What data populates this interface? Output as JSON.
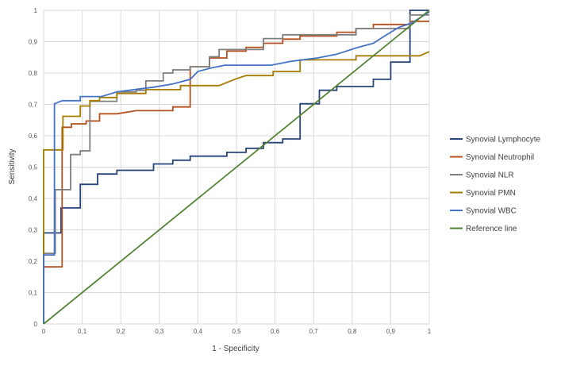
{
  "chart_data": {
    "type": "line",
    "title": "",
    "xlabel": "1 - Specificity",
    "ylabel": "Sensitivity",
    "xlim": [
      0,
      1
    ],
    "ylim": [
      0,
      1
    ],
    "x_ticks": [
      "0",
      "0,1",
      "0,2",
      "0,3",
      "0,4",
      "0,5",
      "0,6",
      "0,7",
      "0,8",
      "0,9",
      "1"
    ],
    "y_ticks": [
      "0",
      "0,1",
      "0,2",
      "0,3",
      "0,4",
      "0,5",
      "0,6",
      "0,7",
      "0,8",
      "0,9",
      "1"
    ],
    "grid": true,
    "legend_position": "right",
    "series": [
      {
        "name": "Synovial Lymphocyte",
        "color": "#264478",
        "step": true,
        "points": [
          [
            0,
            0
          ],
          [
            0,
            0.29
          ],
          [
            0.045,
            0.29
          ],
          [
            0.045,
            0.37
          ],
          [
            0.095,
            0.37
          ],
          [
            0.095,
            0.445
          ],
          [
            0.14,
            0.445
          ],
          [
            0.14,
            0.478
          ],
          [
            0.19,
            0.478
          ],
          [
            0.19,
            0.49
          ],
          [
            0.285,
            0.49
          ],
          [
            0.285,
            0.51
          ],
          [
            0.335,
            0.51
          ],
          [
            0.335,
            0.522
          ],
          [
            0.38,
            0.522
          ],
          [
            0.38,
            0.535
          ],
          [
            0.475,
            0.535
          ],
          [
            0.475,
            0.547
          ],
          [
            0.525,
            0.547
          ],
          [
            0.525,
            0.56
          ],
          [
            0.57,
            0.56
          ],
          [
            0.57,
            0.578
          ],
          [
            0.62,
            0.578
          ],
          [
            0.62,
            0.59
          ],
          [
            0.665,
            0.59
          ],
          [
            0.665,
            0.702
          ],
          [
            0.715,
            0.702
          ],
          [
            0.715,
            0.745
          ],
          [
            0.76,
            0.745
          ],
          [
            0.76,
            0.757
          ],
          [
            0.855,
            0.757
          ],
          [
            0.855,
            0.78
          ],
          [
            0.9,
            0.78
          ],
          [
            0.9,
            0.835
          ],
          [
            0.95,
            0.835
          ],
          [
            0.95,
            1
          ],
          [
            1,
            1
          ]
        ]
      },
      {
        "name": "Synovial Neutrophil",
        "color": "#B5501F",
        "step": true,
        "points": [
          [
            0,
            0
          ],
          [
            0,
            0.182
          ],
          [
            0.048,
            0.182
          ],
          [
            0.048,
            0.627
          ],
          [
            0.072,
            0.627
          ],
          [
            0.072,
            0.638
          ],
          [
            0.11,
            0.638
          ],
          [
            0.11,
            0.647
          ],
          [
            0.145,
            0.647
          ],
          [
            0.145,
            0.67
          ],
          [
            0.19,
            0.67
          ],
          [
            0.24,
            0.68
          ],
          [
            0.335,
            0.68
          ],
          [
            0.335,
            0.692
          ],
          [
            0.38,
            0.692
          ],
          [
            0.38,
            0.82
          ],
          [
            0.43,
            0.82
          ],
          [
            0.43,
            0.848
          ],
          [
            0.475,
            0.848
          ],
          [
            0.475,
            0.87
          ],
          [
            0.525,
            0.87
          ],
          [
            0.525,
            0.882
          ],
          [
            0.57,
            0.882
          ],
          [
            0.57,
            0.895
          ],
          [
            0.62,
            0.895
          ],
          [
            0.62,
            0.908
          ],
          [
            0.665,
            0.908
          ],
          [
            0.665,
            0.918
          ],
          [
            0.76,
            0.918
          ],
          [
            0.76,
            0.93
          ],
          [
            0.81,
            0.93
          ],
          [
            0.81,
            0.942
          ],
          [
            0.855,
            0.942
          ],
          [
            0.855,
            0.955
          ],
          [
            0.95,
            0.955
          ],
          [
            0.95,
            0.965
          ],
          [
            1,
            0.965
          ]
        ]
      },
      {
        "name": "Synovial NLR",
        "color": "#7F7F7F",
        "step": true,
        "points": [
          [
            0,
            0
          ],
          [
            0,
            0.225
          ],
          [
            0.03,
            0.225
          ],
          [
            0.03,
            0.428
          ],
          [
            0.07,
            0.428
          ],
          [
            0.07,
            0.54
          ],
          [
            0.095,
            0.54
          ],
          [
            0.095,
            0.552
          ],
          [
            0.12,
            0.552
          ],
          [
            0.12,
            0.71
          ],
          [
            0.19,
            0.71
          ],
          [
            0.19,
            0.74
          ],
          [
            0.24,
            0.74
          ],
          [
            0.24,
            0.745
          ],
          [
            0.265,
            0.745
          ],
          [
            0.265,
            0.775
          ],
          [
            0.31,
            0.775
          ],
          [
            0.31,
            0.8
          ],
          [
            0.335,
            0.8
          ],
          [
            0.335,
            0.81
          ],
          [
            0.38,
            0.81
          ],
          [
            0.38,
            0.82
          ],
          [
            0.43,
            0.82
          ],
          [
            0.43,
            0.852
          ],
          [
            0.455,
            0.852
          ],
          [
            0.455,
            0.875
          ],
          [
            0.57,
            0.875
          ],
          [
            0.57,
            0.91
          ],
          [
            0.62,
            0.91
          ],
          [
            0.62,
            0.922
          ],
          [
            0.81,
            0.922
          ],
          [
            0.81,
            0.942
          ],
          [
            0.95,
            0.942
          ],
          [
            0.95,
            0.985
          ],
          [
            1,
            0.985
          ]
        ]
      },
      {
        "name": "Synovial PMN",
        "color": "#A67C00",
        "step": true,
        "points": [
          [
            0,
            0
          ],
          [
            0,
            0.555
          ],
          [
            0.05,
            0.555
          ],
          [
            0.05,
            0.662
          ],
          [
            0.095,
            0.662
          ],
          [
            0.095,
            0.695
          ],
          [
            0.12,
            0.695
          ],
          [
            0.12,
            0.712
          ],
          [
            0.145,
            0.712
          ],
          [
            0.145,
            0.722
          ],
          [
            0.19,
            0.722
          ],
          [
            0.19,
            0.735
          ],
          [
            0.265,
            0.735
          ],
          [
            0.265,
            0.747
          ],
          [
            0.355,
            0.747
          ],
          [
            0.355,
            0.76
          ],
          [
            0.455,
            0.76
          ],
          [
            0.5,
            0.782
          ],
          [
            0.525,
            0.792
          ],
          [
            0.595,
            0.792
          ],
          [
            0.595,
            0.805
          ],
          [
            0.665,
            0.805
          ],
          [
            0.665,
            0.842
          ],
          [
            0.81,
            0.842
          ],
          [
            0.81,
            0.855
          ],
          [
            0.975,
            0.855
          ],
          [
            1,
            0.868
          ]
        ]
      },
      {
        "name": "Synovial WBC",
        "color": "#4472C4",
        "step": false,
        "points": [
          [
            0,
            0
          ],
          [
            0,
            0.22
          ],
          [
            0.028,
            0.22
          ],
          [
            0.028,
            0.702
          ],
          [
            0.048,
            0.712
          ],
          [
            0.095,
            0.712
          ],
          [
            0.095,
            0.725
          ],
          [
            0.15,
            0.725
          ],
          [
            0.19,
            0.74
          ],
          [
            0.24,
            0.748
          ],
          [
            0.285,
            0.755
          ],
          [
            0.335,
            0.765
          ],
          [
            0.38,
            0.78
          ],
          [
            0.4,
            0.805
          ],
          [
            0.43,
            0.815
          ],
          [
            0.47,
            0.825
          ],
          [
            0.59,
            0.825
          ],
          [
            0.64,
            0.837
          ],
          [
            0.71,
            0.848
          ],
          [
            0.76,
            0.86
          ],
          [
            0.81,
            0.88
          ],
          [
            0.855,
            0.895
          ],
          [
            0.88,
            0.915
          ],
          [
            0.92,
            0.945
          ],
          [
            0.955,
            0.96
          ],
          [
            1,
            0.995
          ]
        ]
      },
      {
        "name": "Reference line",
        "color": "#548235",
        "step": false,
        "points": [
          [
            0,
            0
          ],
          [
            1,
            1
          ]
        ]
      }
    ]
  }
}
